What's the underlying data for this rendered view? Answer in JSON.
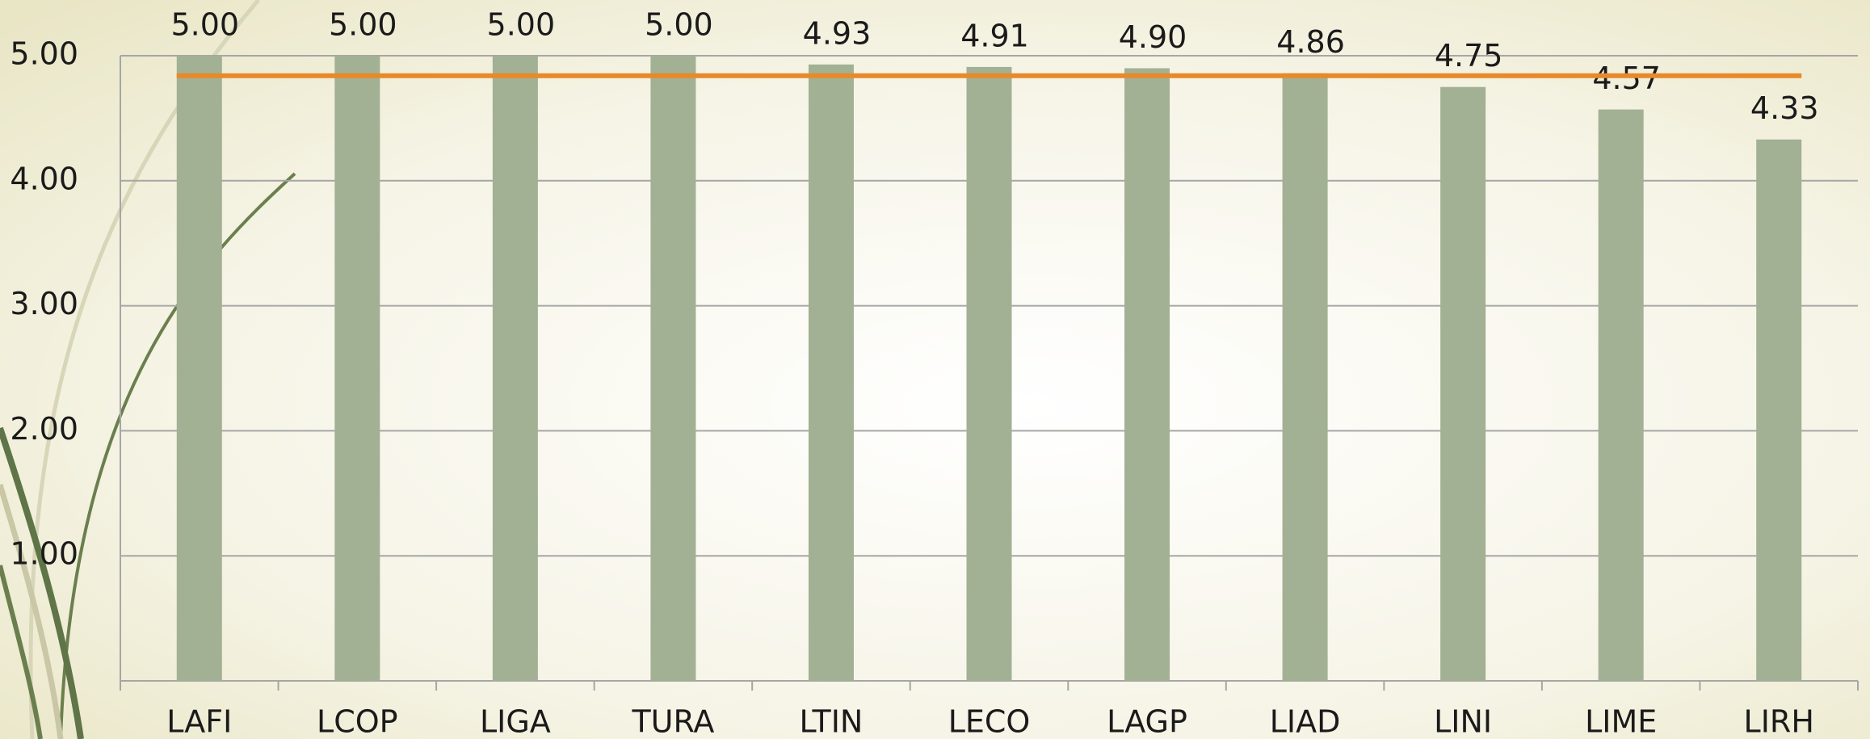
{
  "chart_data": {
    "type": "bar",
    "categories": [
      "LAFI",
      "LCOP",
      "LIGA",
      "TURA",
      "LTIN",
      "LECO",
      "LAGP",
      "LIAD",
      "LINI",
      "LIME",
      "LIRH"
    ],
    "values": [
      5.0,
      5.0,
      5.0,
      5.0,
      4.93,
      4.91,
      4.9,
      4.86,
      4.75,
      4.57,
      4.33
    ],
    "value_labels": [
      "5.00",
      "5.00",
      "5.00",
      "5.00",
      "4.93",
      "4.91",
      "4.90",
      "4.86",
      "4.75",
      "4.57",
      "4.33"
    ],
    "color": "#a2b094",
    "reference_line": {
      "value": 4.84,
      "color": "#e8892a"
    },
    "ylim": [
      0,
      5
    ],
    "yticks": [
      {
        "value": 1,
        "label": "1.00"
      },
      {
        "value": 2,
        "label": "2.00"
      },
      {
        "value": 3,
        "label": "3.00"
      },
      {
        "value": 4,
        "label": "4.00"
      },
      {
        "value": 5,
        "label": "5.00"
      }
    ],
    "grid": true
  }
}
